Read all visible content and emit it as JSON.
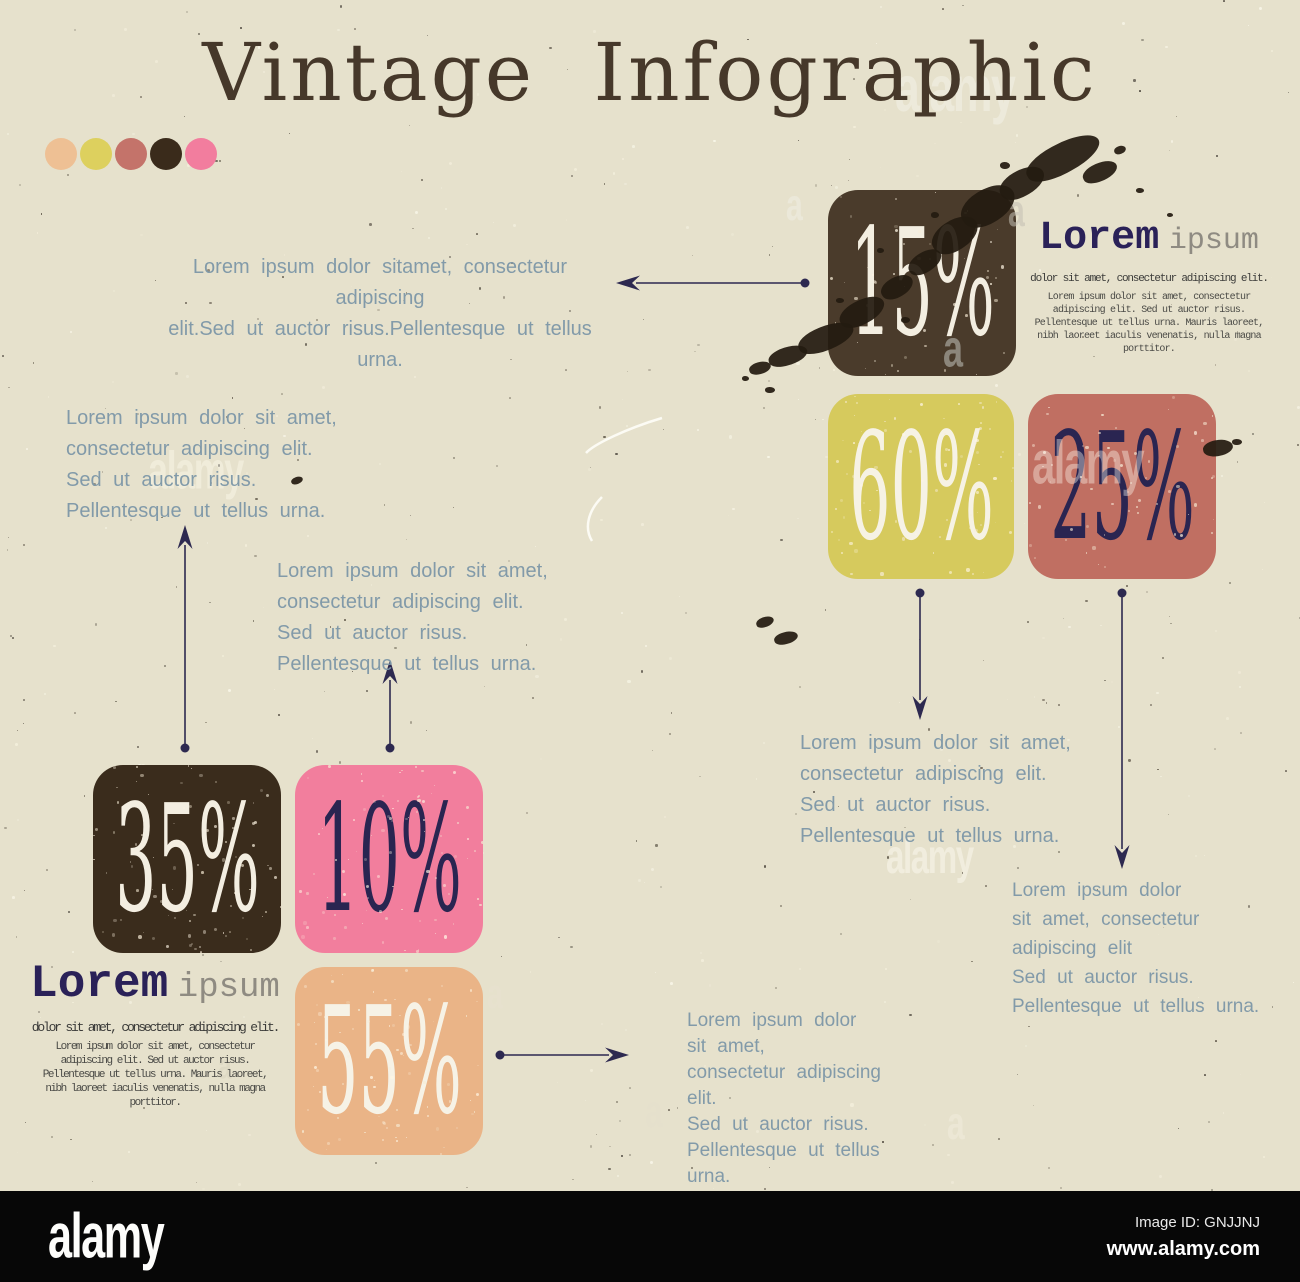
{
  "title": "Vintage Infographic",
  "palette": {
    "dots": [
      "#eec094",
      "#ddd05e",
      "#c4736a",
      "#3a2b1b",
      "#f27d9e"
    ]
  },
  "stats": [
    {
      "label": "top-brown",
      "value": "15%",
      "bg": "#4a3b2b",
      "fg": "#f3eee1"
    },
    {
      "label": "yellow",
      "value": "60%",
      "bg": "#d6ca5d",
      "fg": "#f6f2e4"
    },
    {
      "label": "mauve",
      "value": "25%",
      "bg": "#c06f62",
      "fg": "#2a2551"
    },
    {
      "label": "brown",
      "value": "35%",
      "bg": "#3a2c1c",
      "fg": "#f3eee1"
    },
    {
      "label": "pink",
      "value": "10%",
      "bg": "#f27e9d",
      "fg": "#2a2551"
    },
    {
      "label": "tan",
      "value": "55%",
      "bg": "#eab487",
      "fg": "#f6f2e6"
    }
  ],
  "notes": {
    "n1": "Lorem ipsum dolor sitamet, consectetur adipiscing\nelit.Sed ut auctor risus.Pellentesque ut tellus urna.",
    "n2": "Lorem ipsum dolor sit amet,\nconsectetur adipiscing elit.\nSed ut auctor risus.\nPellentesque ut tellus urna.",
    "n3": "Lorem ipsum dolor sit amet,\nconsectetur adipiscing elit.\nSed ut auctor risus.\nPellentesque ut tellus urna.",
    "n4": "Lorem ipsum dolor sit amet,\nconsectetur adipiscing elit.\nSed ut auctor risus.\nPellentesque ut tellus urna.",
    "n5": "Lorem ipsum dolor\nsit amet, consectetur\nadipiscing elit\nSed ut auctor risus.\nPellentesque ut tellus urna.",
    "n6": "Lorem ipsum dolor\nsit amet,\nconsectetur adipiscing\nelit.\nSed ut auctor risus.\nPellentesque ut tellus urna."
  },
  "heading_top_right": {
    "title_bold": "Lorem",
    "title_light": "ipsum",
    "subtitle": "dolor sit amet, consectetur adipiscing elit.",
    "body": "Lorem ipsum dolor sit amet, consectetur\nadipiscing elit. Sed ut auctor risus.\nPellentesque ut tellus urna. Mauris laoreet,\nnibh laoreet iaculis venenatis, nulla magna\nporttitor."
  },
  "heading_bottom_left": {
    "title_bold": "Lorem",
    "title_light": "ipsum",
    "subtitle": "dolor sit amet, consectetur adipiscing elit.",
    "body": "Lorem ipsum dolor sit amet, consectetur\nadipiscing elit. Sed ut auctor risus.\nPellentesque ut tellus urna. Mauris laoreet,\nnibh laoreet iaculis venenatis, nulla magna\nporttitor."
  },
  "watermarks": {
    "brand": "alamy",
    "letter": "a"
  },
  "footer": {
    "logo": "alamy",
    "image_id_label": "Image ID: GNJJNJ",
    "website": "www.alamy.com"
  },
  "colors": {
    "background": "#e6e1cc",
    "note_text": "#7e98a8",
    "heading_navy": "#2a2158",
    "arrow": "#2d2950",
    "ink_splatter": "#241b10",
    "title_brown": "#46382a"
  },
  "chart_data": {
    "type": "table",
    "title": "Vintage Infographic",
    "categories": [
      "brown-top",
      "yellow",
      "mauve",
      "brown",
      "pink",
      "tan"
    ],
    "values": [
      15,
      60,
      25,
      35,
      10,
      55
    ],
    "unit": "%"
  }
}
